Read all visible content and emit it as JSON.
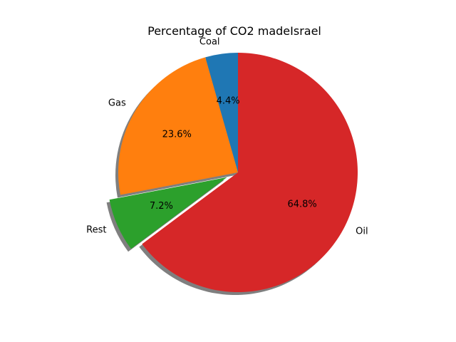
{
  "chart_data": {
    "type": "pie",
    "title": "Percentage of CO2 madeIsrael",
    "slices": [
      {
        "label": "Coal",
        "value": 4.4,
        "pct_label": "4.4%",
        "color": "#1f77b4",
        "explode": 0
      },
      {
        "label": "Gas",
        "value": 23.6,
        "pct_label": "23.6%",
        "color": "#ff7f0e",
        "explode": 0
      },
      {
        "label": "Rest",
        "value": 7.2,
        "pct_label": "7.2%",
        "color": "#2ca02c",
        "explode": 0.1
      },
      {
        "label": "Oil",
        "value": 64.8,
        "pct_label": "64.8%",
        "color": "#d62728",
        "explode": 0
      }
    ],
    "start_angle_deg": 90,
    "direction": "counterclockwise",
    "shadow": true
  }
}
